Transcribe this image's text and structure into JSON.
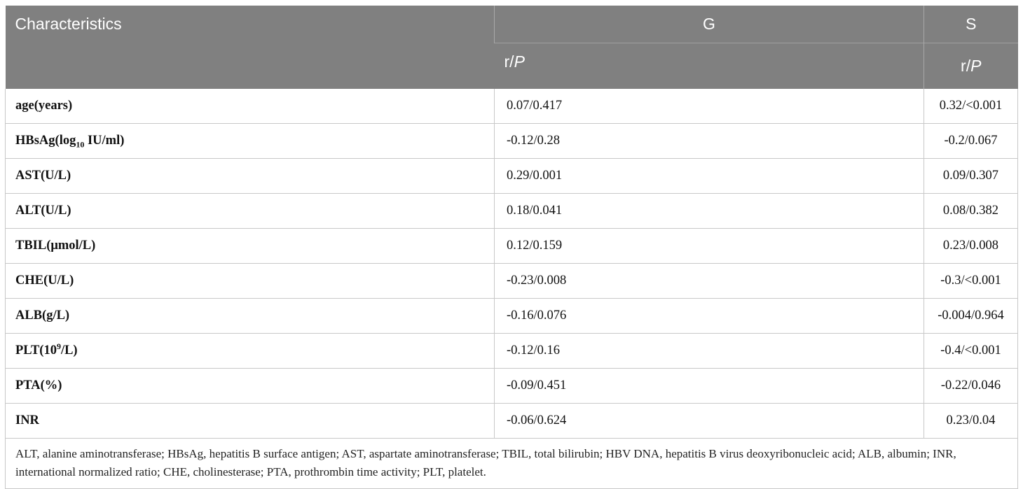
{
  "table": {
    "header": {
      "characteristics": "Characteristics",
      "col_g": "G",
      "col_s": "S",
      "sub_g_r": "r/",
      "sub_g_p": "P",
      "sub_s_r": "r/",
      "sub_s_p": "P"
    },
    "rows": [
      {
        "label": "age(years)",
        "g": "0.07/0.417",
        "s": "0.32/<0.001"
      },
      {
        "label_pre": "HBsAg(log",
        "label_sub": "10",
        "label_post": " IU/ml)",
        "g": "-0.12/0.28",
        "s": "-0.2/0.067"
      },
      {
        "label": "AST(U/L)",
        "g": "0.29/0.001",
        "s": "0.09/0.307"
      },
      {
        "label": "ALT(U/L)",
        "g": "0.18/0.041",
        "s": "0.08/0.382"
      },
      {
        "label": "TBIL(μmol/L)",
        "g": "0.12/0.159",
        "s": "0.23/0.008"
      },
      {
        "label": "CHE(U/L)",
        "g": "-0.23/0.008",
        "s": "-0.3/<0.001"
      },
      {
        "label": "ALB(g/L)",
        "g": "-0.16/0.076",
        "s": "-0.004/0.964"
      },
      {
        "label_pre": "PLT(10",
        "label_sup": "9",
        "label_post": "/L)",
        "g": "-0.12/0.16",
        "s": "-0.4/<0.001"
      },
      {
        "label": "PTA(%)",
        "g": "-0.09/0.451",
        "s": "-0.22/0.046"
      },
      {
        "label": "INR",
        "g": "-0.06/0.624",
        "s": "0.23/0.04"
      }
    ],
    "footnote": "ALT, alanine aminotransferase; HBsAg, hepatitis B surface antigen; AST, aspartate aminotransferase; TBIL, total bilirubin; HBV DNA, hepatitis B virus deoxyribonucleic acid; ALB, albumin; INR, international normalized ratio; CHE, cholinesterase; PTA, prothrombin time activity; PLT, platelet."
  }
}
